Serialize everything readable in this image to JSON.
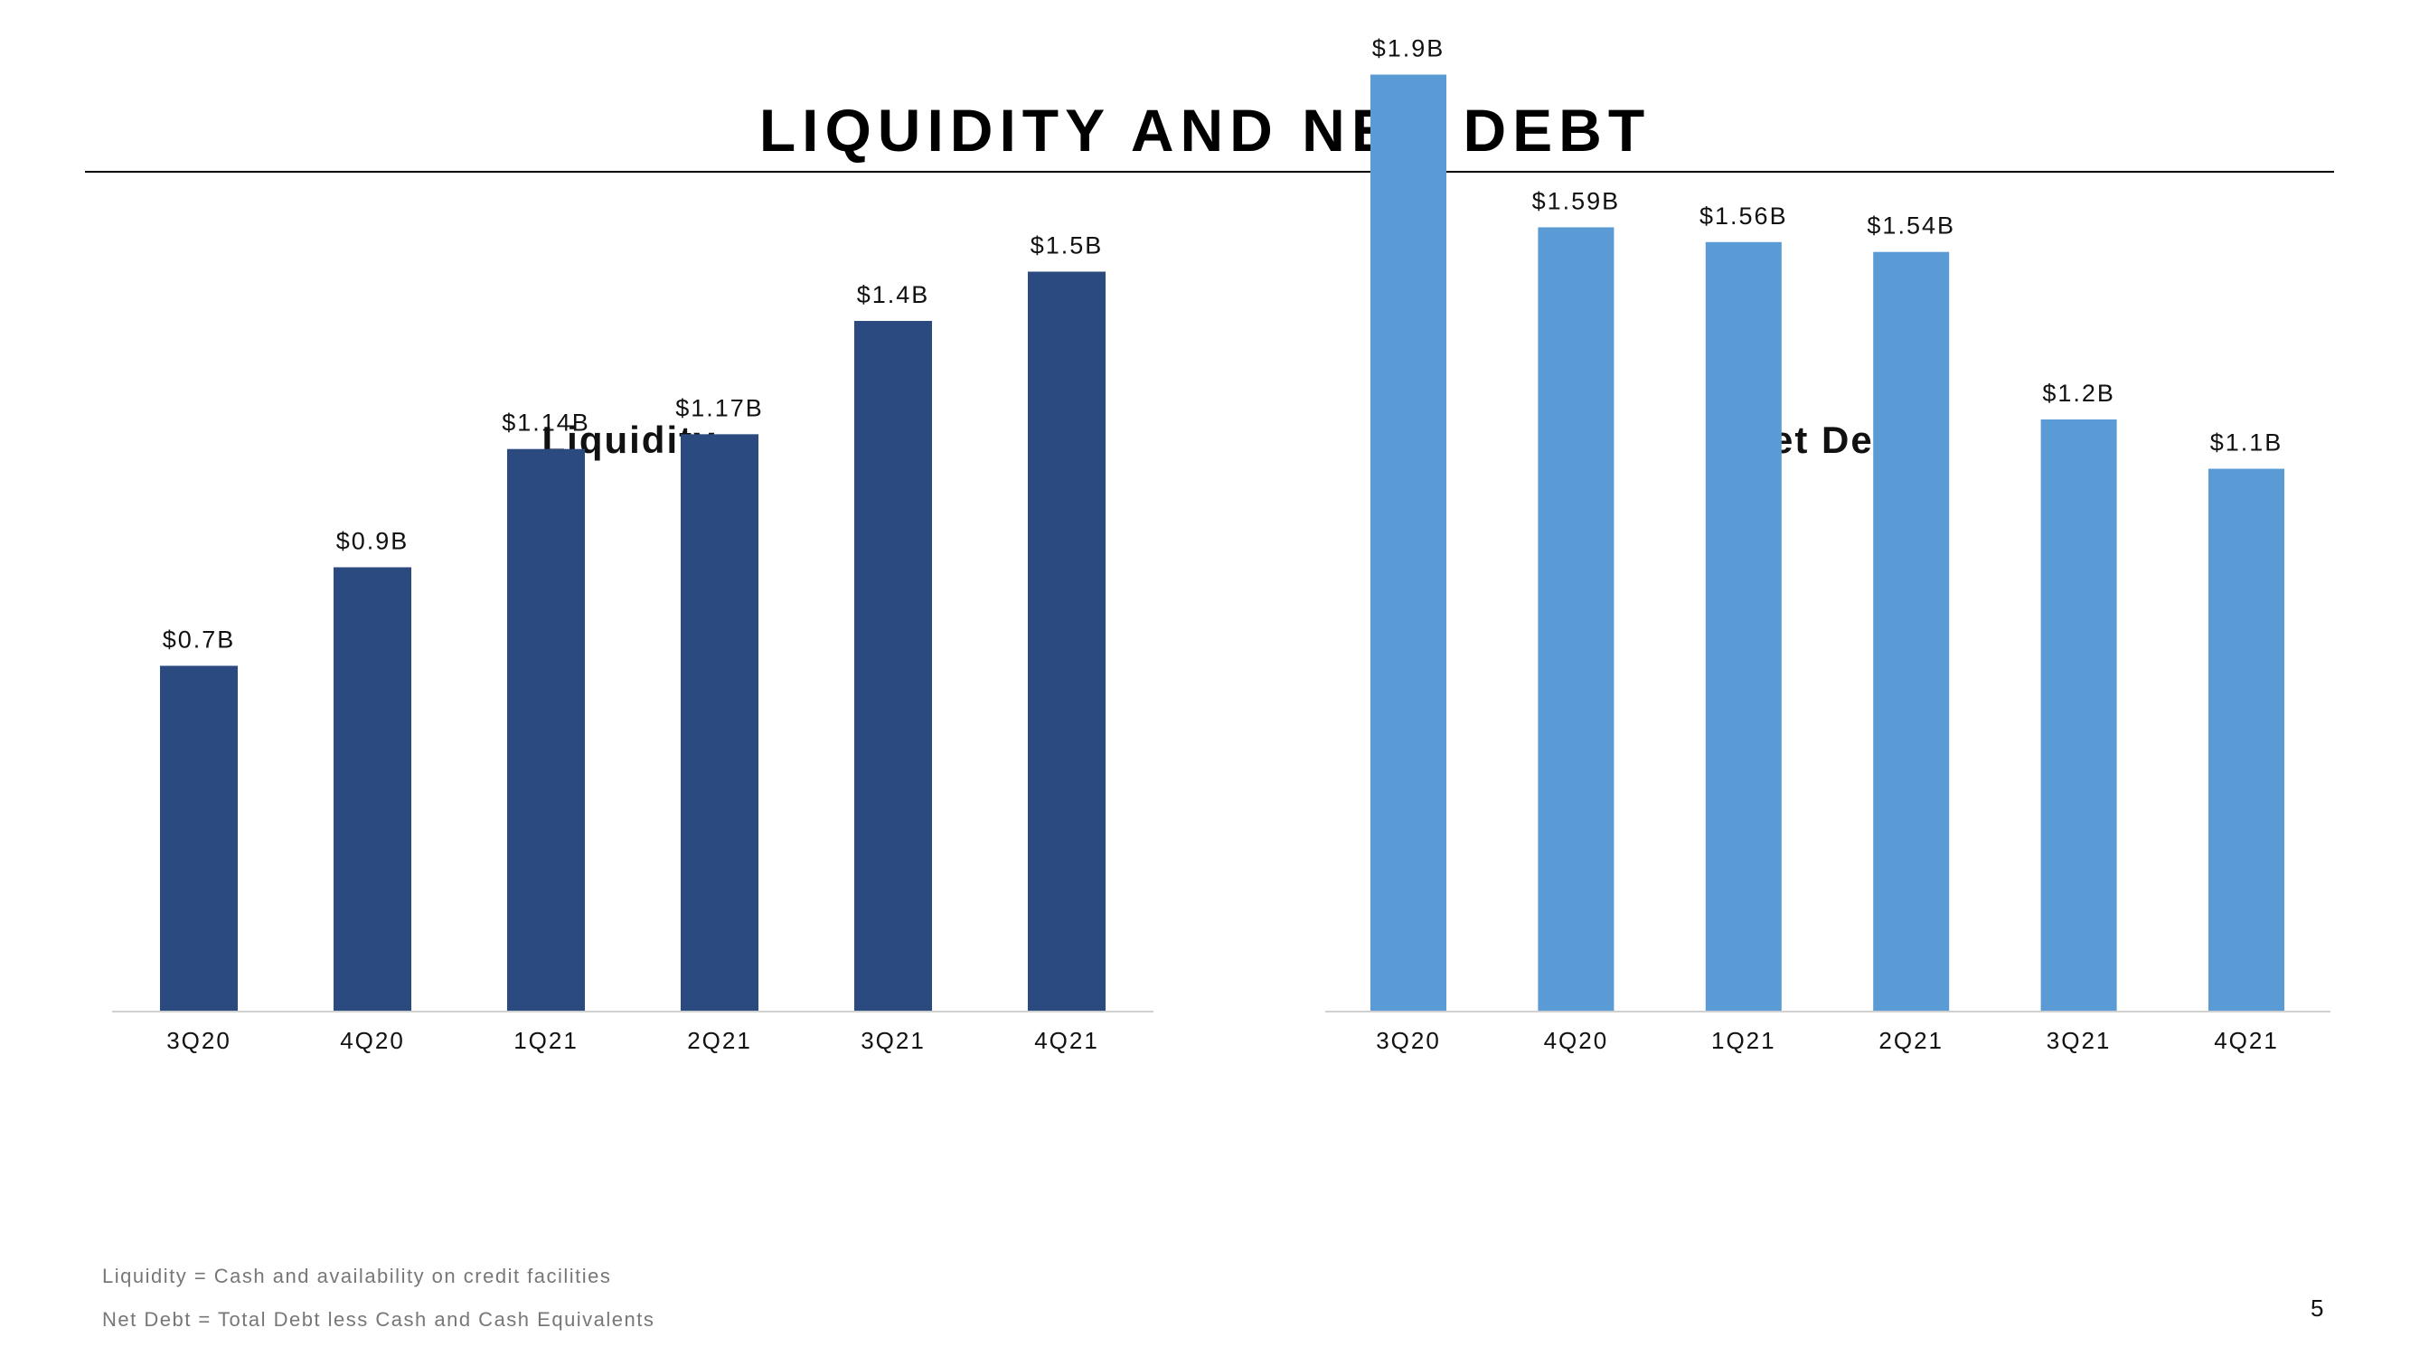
{
  "slide": {
    "title": "LIQUIDITY AND NET DEBT",
    "page_number": "5"
  },
  "footnotes": [
    "Liquidity  = Cash  and  availability  on  credit facilities",
    "Net  Debt = Total  Debt  less  Cash  and  Cash  Equivalents"
  ],
  "colors": {
    "liquidity_bar": "#2b4a7f",
    "net_debt_bar": "#5b9bd5",
    "axis": "#d0d0d0"
  },
  "chart_data": [
    {
      "type": "bar",
      "title": "Liquidity",
      "categories": [
        "3Q20",
        "4Q20",
        "1Q21",
        "2Q21",
        "3Q21",
        "4Q21"
      ],
      "values": [
        0.7,
        0.9,
        1.14,
        1.17,
        1.4,
        1.5
      ],
      "value_labels": [
        "$0.7B",
        "$0.9B",
        "$1.14B",
        "$1.17B",
        "$1.4B",
        "$1.5B"
      ],
      "ylim": [
        0,
        1.9
      ],
      "grid": false,
      "color": "#2b4a7f"
    },
    {
      "type": "bar",
      "title": "Net Debt",
      "categories": [
        "3Q20",
        "4Q20",
        "1Q21",
        "2Q21",
        "3Q21",
        "4Q21"
      ],
      "values": [
        1.9,
        1.59,
        1.56,
        1.54,
        1.2,
        1.1
      ],
      "value_labels": [
        "$1.9B",
        "$1.59B",
        "$1.56B",
        "$1.54B",
        "$1.2B",
        "$1.1B"
      ],
      "ylim": [
        0,
        1.9
      ],
      "grid": false,
      "color": "#5b9bd5"
    }
  ]
}
